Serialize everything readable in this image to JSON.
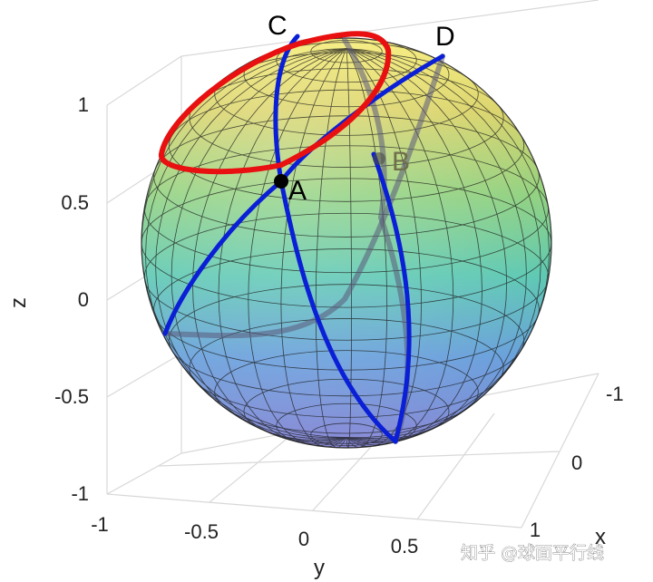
{
  "axes": {
    "z": {
      "title": "z",
      "ticks": [
        "1",
        "0.5",
        "0",
        "-0.5",
        "-1"
      ]
    },
    "y": {
      "title": "y",
      "ticks": [
        "-1",
        "-0.5",
        "0",
        "0.5",
        "1"
      ]
    },
    "x": {
      "title": "x",
      "ticks": [
        "-1",
        "0",
        "1"
      ]
    }
  },
  "points": {
    "A": "A",
    "B": "B",
    "C": "C",
    "D": "D"
  },
  "colors": {
    "great_circle": "#0a1fd6",
    "small_circle": "#e81010",
    "point": "#000000"
  },
  "watermark": "知乎 @球面平行线"
}
